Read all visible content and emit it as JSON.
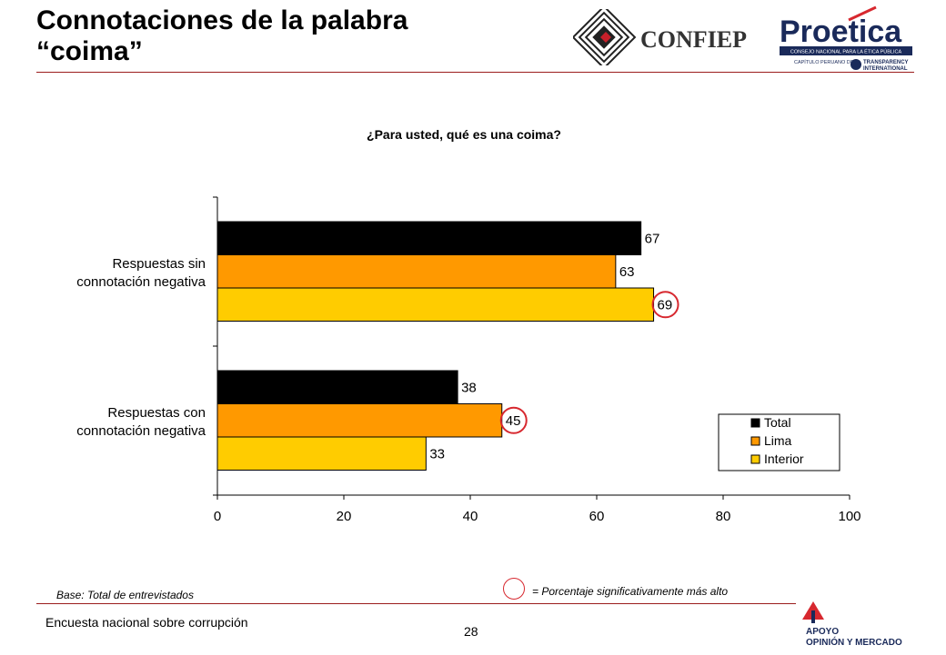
{
  "slide": {
    "title_line1": "Connotaciones de la palabra",
    "title_line2": "“coima”",
    "base_note": "Base: Total de entrevistados",
    "significance_note": "= Porcentaje significativamente más alto",
    "footer": "Encuesta nacional sobre corrupción",
    "page_number": "28"
  },
  "logos": {
    "confiep": "CONFIEP",
    "proetica": "Proetica",
    "proetica_sub": "CONSEJO NACIONAL PARA LA ÉTICA PÚBLICA",
    "proetica_chapter": "CAPÍTULO PERUANO DE:",
    "transparency_1": "TRANSPARENCY",
    "transparency_2": "INTERNATIONAL",
    "apoyo_1": "APOYO",
    "apoyo_2": "OPINIÓN Y MERCADO"
  },
  "colors": {
    "accent_rule": "#9b1c1c",
    "highlight_circle": "#d7282f"
  },
  "chart_data": {
    "type": "bar",
    "orientation": "horizontal",
    "title": "¿Para usted, qué es una coima?",
    "categories": [
      "Respuestas sin connotación negativa",
      "Respuestas con connotación negativa"
    ],
    "category_lines": [
      [
        "Respuestas sin",
        "connotación negativa"
      ],
      [
        "Respuestas con",
        "connotación negativa"
      ]
    ],
    "series": [
      {
        "name": "Total",
        "values": [
          67,
          38
        ],
        "color": "#000000"
      },
      {
        "name": "Lima",
        "values": [
          63,
          45
        ],
        "color": "#ff9900"
      },
      {
        "name": "Interior",
        "values": [
          69,
          33
        ],
        "color": "#ffcc00"
      }
    ],
    "highlighted": [
      {
        "series": "Interior",
        "category": 0
      },
      {
        "series": "Lima",
        "category": 1
      }
    ],
    "xlim": [
      0,
      100
    ],
    "xticks": [
      0,
      20,
      40,
      60,
      80,
      100
    ],
    "grid": false,
    "legend_position": "bottom-right"
  }
}
